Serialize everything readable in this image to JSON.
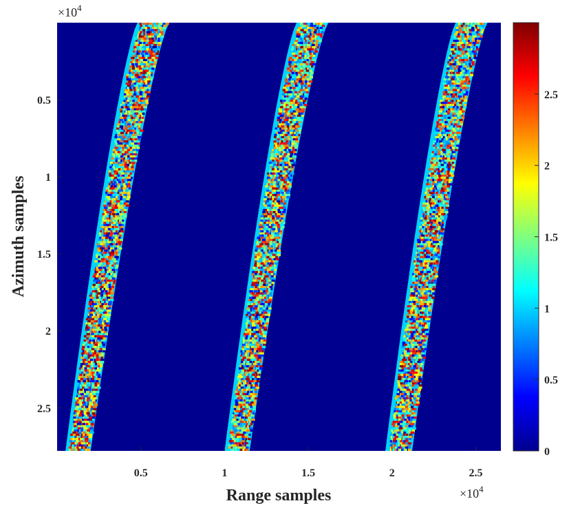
{
  "chart_data": {
    "type": "heatmap",
    "title": "",
    "xlabel": "Range samples",
    "ylabel": "Azimuth samples",
    "x_multiplier": "×10^4",
    "y_multiplier": "×10^4",
    "xlim": [
      0,
      26500
    ],
    "ylim": [
      0,
      27800
    ],
    "y_direction": "reversed",
    "x_ticks": [
      {
        "value": 5000,
        "label": "0.5"
      },
      {
        "value": 10000,
        "label": "1"
      },
      {
        "value": 15000,
        "label": "1.5"
      },
      {
        "value": 20000,
        "label": "2"
      },
      {
        "value": 25000,
        "label": "2.5"
      }
    ],
    "y_ticks": [
      {
        "value": 5000,
        "label": "0.5"
      },
      {
        "value": 10000,
        "label": "1"
      },
      {
        "value": 15000,
        "label": "1.5"
      },
      {
        "value": 20000,
        "label": "2"
      },
      {
        "value": 25000,
        "label": "2.5"
      }
    ],
    "background_value": 0,
    "stripes": [
      {
        "name": "",
        "inner_edge_top": 4800,
        "inner_edge_bottom": 500,
        "outer_edge_top": 6700,
        "outer_edge_bottom": 2000,
        "edge_value": 1.0,
        "interior_range": [
          0,
          3.0
        ]
      },
      {
        "name": "",
        "inner_edge_top": 14300,
        "inner_edge_bottom": 10000,
        "outer_edge_top": 16200,
        "outer_edge_bottom": 11500,
        "edge_value": 1.0,
        "interior_range": [
          0,
          3.0
        ]
      },
      {
        "name": "",
        "inner_edge_top": 23800,
        "inner_edge_bottom": 19600,
        "outer_edge_top": 25700,
        "outer_edge_bottom": 21200,
        "edge_value": 1.0,
        "interior_range": [
          0,
          3.0
        ]
      }
    ],
    "colorbar": {
      "colormap": "jet",
      "range": [
        0,
        3.0
      ],
      "ticks": [
        {
          "value": 0,
          "label": "0"
        },
        {
          "value": 0.5,
          "label": "0.5"
        },
        {
          "value": 1,
          "label": "1"
        },
        {
          "value": 1.5,
          "label": "1.5"
        },
        {
          "value": 2,
          "label": "2"
        },
        {
          "value": 2.5,
          "label": "2.5"
        }
      ]
    },
    "grid": false,
    "legend": "none"
  },
  "colors": {
    "background": "#00008f",
    "axis_text": "#262626"
  }
}
